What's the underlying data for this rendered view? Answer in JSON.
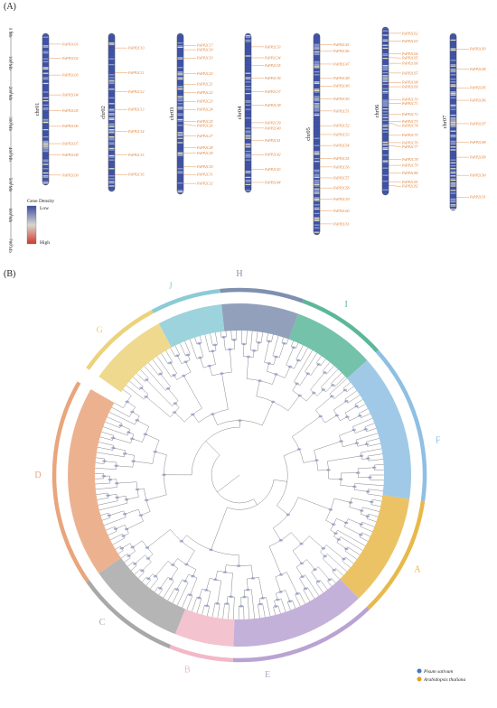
{
  "panels": {
    "a_label": "(A)",
    "b_label": "(B)"
  },
  "panel_a": {
    "axis_ticks": [
      "0 Mb",
      "100 Mb",
      "200 Mb",
      "300 Mb",
      "400 Mb",
      "500 Mb",
      "600 Mb",
      "700 Mb"
    ],
    "legend": {
      "title": "Gene Density",
      "low": "Low",
      "high": "High",
      "low_color": "#3b4ea3",
      "high_color": "#d03a2a"
    },
    "gene_color": "#e07a2e",
    "chromosomes": [
      {
        "name": "chr01",
        "genes": [
          "PsPP2C01",
          "PsPP2C02",
          "PsPP2C03",
          "PsPP2C04",
          "PsPP2C05",
          "PsPP2C06",
          "PsPP2C07",
          "PsPP2C08",
          "PsPP2C09"
        ]
      },
      {
        "name": "chr02",
        "genes": [
          "PsPP2C10",
          "PsPP2C11",
          "PsPP2C12",
          "PsPP2C13",
          "PsPP2C14",
          "PsPP2C15",
          "PsPP2C16"
        ]
      },
      {
        "name": "chr03",
        "genes": [
          "PsPP2C17",
          "PsPP2C18",
          "PsPP2C19",
          "PsPP2C20",
          "PsPP2C21",
          "PsPP2C22",
          "PsPP2C23",
          "PsPP2C24",
          "PsPP2C25",
          "PsPP2C26",
          "PsPP2C27",
          "PsPP2C28",
          "PsPP2C29",
          "PsPP2C30",
          "PsPP2C31",
          "PsPP2C32"
        ]
      },
      {
        "name": "chr04",
        "genes": [
          "PsPP2C33",
          "PsPP2C34",
          "PsPP2C35",
          "PsPP2C36",
          "PsPP2C37",
          "PsPP2C38",
          "PsPP2C39",
          "PsPP2C40",
          "PsPP2C41",
          "PsPP2C42",
          "PsPP2C43",
          "PsPP2C44"
        ]
      },
      {
        "name": "chr05",
        "genes": [
          "PsPP2C45",
          "PsPP2C46",
          "PsPP2C47",
          "PsPP2C48",
          "PsPP2C49",
          "PsPP2C50",
          "PsPP2C51",
          "PsPP2C52",
          "PsPP2C53",
          "PsPP2C54",
          "PsPP2C55",
          "PsPP2C56",
          "PsPP2C57",
          "PsPP2C58",
          "PsPP2C59",
          "PsPP2C60",
          "PsPP2C61"
        ]
      },
      {
        "name": "chr06",
        "genes": [
          "PsPP2C62",
          "PsPP2C63",
          "PsPP2C64",
          "PsPP2C65",
          "PsPP2C66",
          "PsPP2C67",
          "PsPP2C68",
          "PsPP2C69",
          "PsPP2C70",
          "PsPP2C71",
          "PsPP2C72",
          "PsPP2C73",
          "PsPP2C74",
          "PsPP2C75",
          "PsPP2C76",
          "PsPP2C77",
          "PsPP2C78",
          "PsPP2C79",
          "PsPP2C80",
          "PsPP2C81",
          "PsPP2C82"
        ]
      },
      {
        "name": "chr07",
        "genes": [
          "PsPP2C83",
          "PsPP2C84",
          "PsPP2C85",
          "PsPP2C86",
          "PsPP2C87",
          "PsPP2C88",
          "PsPP2C89",
          "PsPP2C90",
          "PsPP2C91"
        ]
      }
    ]
  },
  "panel_b": {
    "clades": [
      {
        "name": "A",
        "color": "#e8b94a"
      },
      {
        "name": "B",
        "color": "#f2b8c8"
      },
      {
        "name": "C",
        "color": "#a8a8a8"
      },
      {
        "name": "D",
        "color": "#e9a57c"
      },
      {
        "name": "E",
        "color": "#b9a3d3"
      },
      {
        "name": "F",
        "color": "#8fbfe3"
      },
      {
        "name": "G",
        "color": "#ecd27a"
      },
      {
        "name": "H",
        "color": "#7f8fb0"
      },
      {
        "name": "I",
        "color": "#5cb79a"
      },
      {
        "name": "J",
        "color": "#8ccbd6"
      }
    ],
    "legend": [
      {
        "label": "Pisum sativum",
        "color": "#3d78c4"
      },
      {
        "label": "Arabidopsis thaliana",
        "color": "#e0a020"
      }
    ]
  }
}
